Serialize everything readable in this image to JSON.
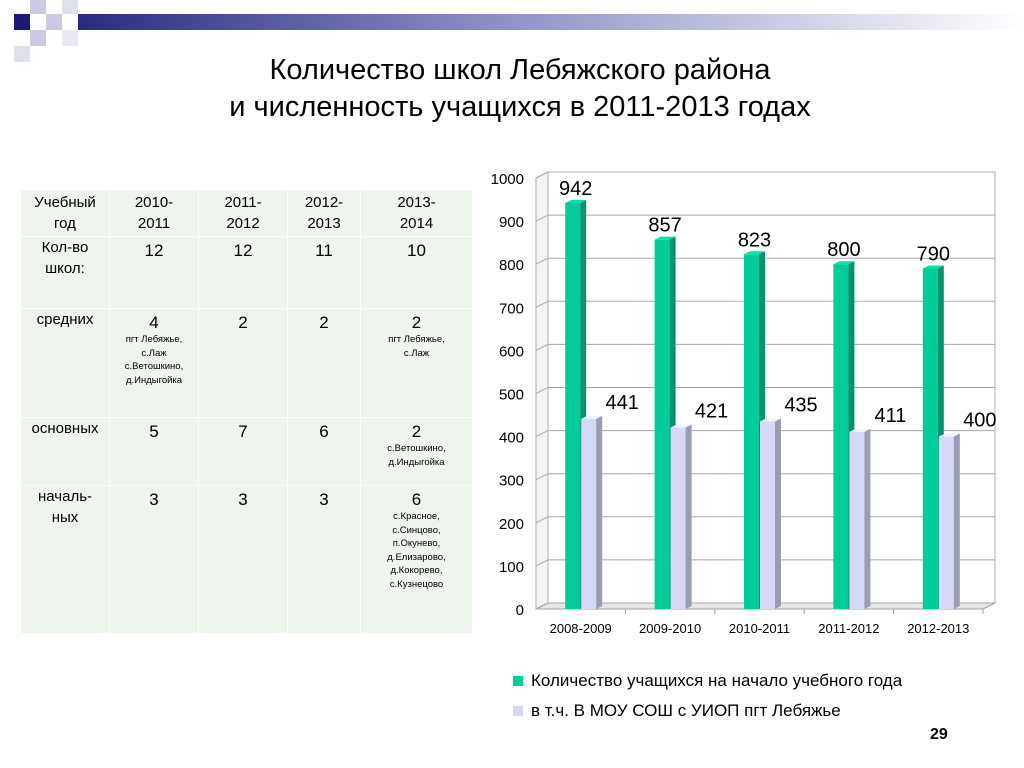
{
  "title_line1": "Количество школ Лебяжского района",
  "title_line2": "и численность учащихся в 2011-2013 годах",
  "page_number": "29",
  "table": {
    "header": [
      "Учебный год",
      "2010-2011",
      "2011-2012",
      "2012-2013",
      "2013-2014"
    ],
    "rows": [
      {
        "label": "Кол-во школ:",
        "cells": [
          {
            "value": "12",
            "note": ""
          },
          {
            "value": "12",
            "note": ""
          },
          {
            "value": "11",
            "note": ""
          },
          {
            "value": "10",
            "note": ""
          }
        ]
      },
      {
        "label": "средних",
        "cells": [
          {
            "value": "4",
            "note": "пгт Лебяжье, с.Лаж с.Ветошкино, д.Индыгойка"
          },
          {
            "value": "2",
            "note": ""
          },
          {
            "value": "2",
            "note": ""
          },
          {
            "value": "2",
            "note": "пгт Лебяжье, с.Лаж"
          }
        ]
      },
      {
        "label": "основных",
        "cells": [
          {
            "value": "5",
            "note": ""
          },
          {
            "value": "7",
            "note": ""
          },
          {
            "value": "6",
            "note": ""
          },
          {
            "value": "2",
            "note": "с.Ветошкино, д.Индыгойка"
          }
        ]
      },
      {
        "label": "началь-ных",
        "cells": [
          {
            "value": "3",
            "note": ""
          },
          {
            "value": "3",
            "note": ""
          },
          {
            "value": "3",
            "note": ""
          },
          {
            "value": "6",
            "note": "с.Красное, с.Синцово, п.Окунево, д.Елизарово, д.Кокорево, с.Кузнецово"
          }
        ]
      }
    ]
  },
  "colors": {
    "series1": "#00cc99",
    "series2": "#d6d9f6",
    "table_bg": "#edf5ed"
  },
  "chart_data": {
    "type": "bar",
    "categories": [
      "2008-2009",
      "2009-2010",
      "2010-2011",
      "2011-2012",
      "2012-2013"
    ],
    "series": [
      {
        "name": "Количество учащихся на начало учебного года",
        "values": [
          942,
          857,
          823,
          800,
          790
        ],
        "color": "#00cc99"
      },
      {
        "name": "в т.ч. В МОУ СОШ с УИОП пгт Лебяжье",
        "values": [
          441,
          421,
          435,
          411,
          400
        ],
        "color": "#d6d9f6"
      }
    ],
    "ylim": [
      0,
      1000
    ],
    "yticks": [
      0,
      100,
      200,
      300,
      400,
      500,
      600,
      700,
      800,
      900,
      1000
    ],
    "grid": true,
    "legend_position": "bottom",
    "style": "3d"
  }
}
